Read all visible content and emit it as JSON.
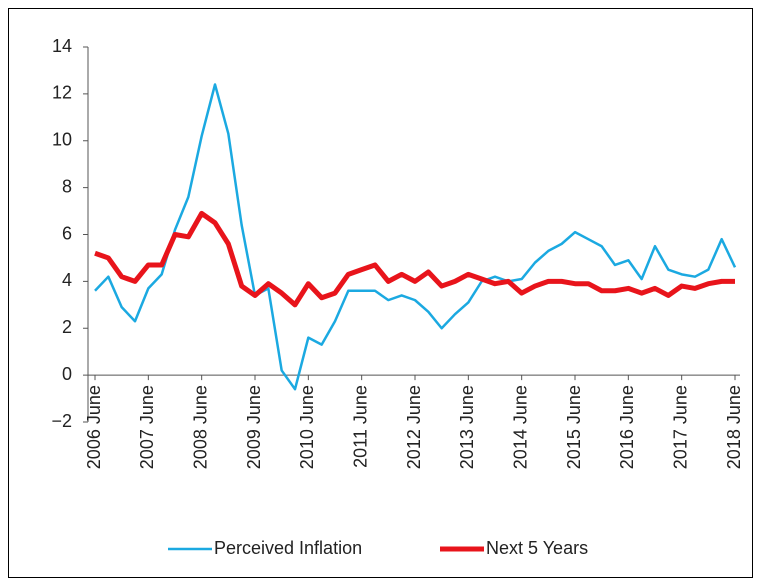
{
  "chart_data": {
    "type": "line",
    "categories": [
      "2006 June",
      null,
      null,
      null,
      "2007 June",
      null,
      null,
      null,
      "2008 June",
      null,
      null,
      null,
      "2009 June",
      null,
      null,
      null,
      "2010 June",
      null,
      null,
      null,
      "2011 June",
      null,
      null,
      null,
      "2012 June",
      null,
      null,
      null,
      "2013 June",
      null,
      null,
      null,
      "2014 June",
      null,
      null,
      null,
      "2015 June",
      null,
      null,
      null,
      "2016 June",
      null,
      null,
      null,
      "2017 June",
      null,
      null,
      null,
      "2018 June"
    ],
    "series": [
      {
        "name": "Perceived Inflation",
        "color": "#1ba9e1",
        "values": [
          3.6,
          4.2,
          2.9,
          2.3,
          3.7,
          4.3,
          6.2,
          7.6,
          10.2,
          12.4,
          10.3,
          6.4,
          3.4,
          3.7,
          0.2,
          -0.6,
          1.6,
          1.3,
          2.3,
          3.6,
          3.6,
          3.6,
          3.2,
          3.4,
          3.2,
          2.7,
          2.0,
          2.6,
          3.1,
          4.0,
          4.2,
          4.0,
          4.1,
          4.8,
          5.3,
          5.6,
          6.1,
          5.8,
          5.5,
          4.7,
          4.9,
          4.1,
          5.5,
          4.5,
          4.3,
          4.2,
          4.5,
          5.8,
          4.6
        ]
      },
      {
        "name": "Next 5 Years",
        "color": "#e8141b",
        "values": [
          5.2,
          5.0,
          4.2,
          4.0,
          4.7,
          4.7,
          6.0,
          5.9,
          6.9,
          6.5,
          5.6,
          3.8,
          3.4,
          3.9,
          3.5,
          3.0,
          3.9,
          3.3,
          3.5,
          4.3,
          4.5,
          4.7,
          4.0,
          4.3,
          4.0,
          4.4,
          3.8,
          4.0,
          4.3,
          4.1,
          3.9,
          4.0,
          3.5,
          3.8,
          4.0,
          4.0,
          3.9,
          3.9,
          3.6,
          3.6,
          3.7,
          3.5,
          3.7,
          3.4,
          3.8,
          3.7,
          3.9,
          4.0,
          4.0
        ]
      }
    ],
    "ylim": [
      -2,
      14
    ],
    "yticks": [
      {
        "value": -2,
        "label": "−2"
      },
      0,
      2,
      4,
      6,
      8,
      10,
      12,
      14
    ],
    "legend": "bottom"
  }
}
